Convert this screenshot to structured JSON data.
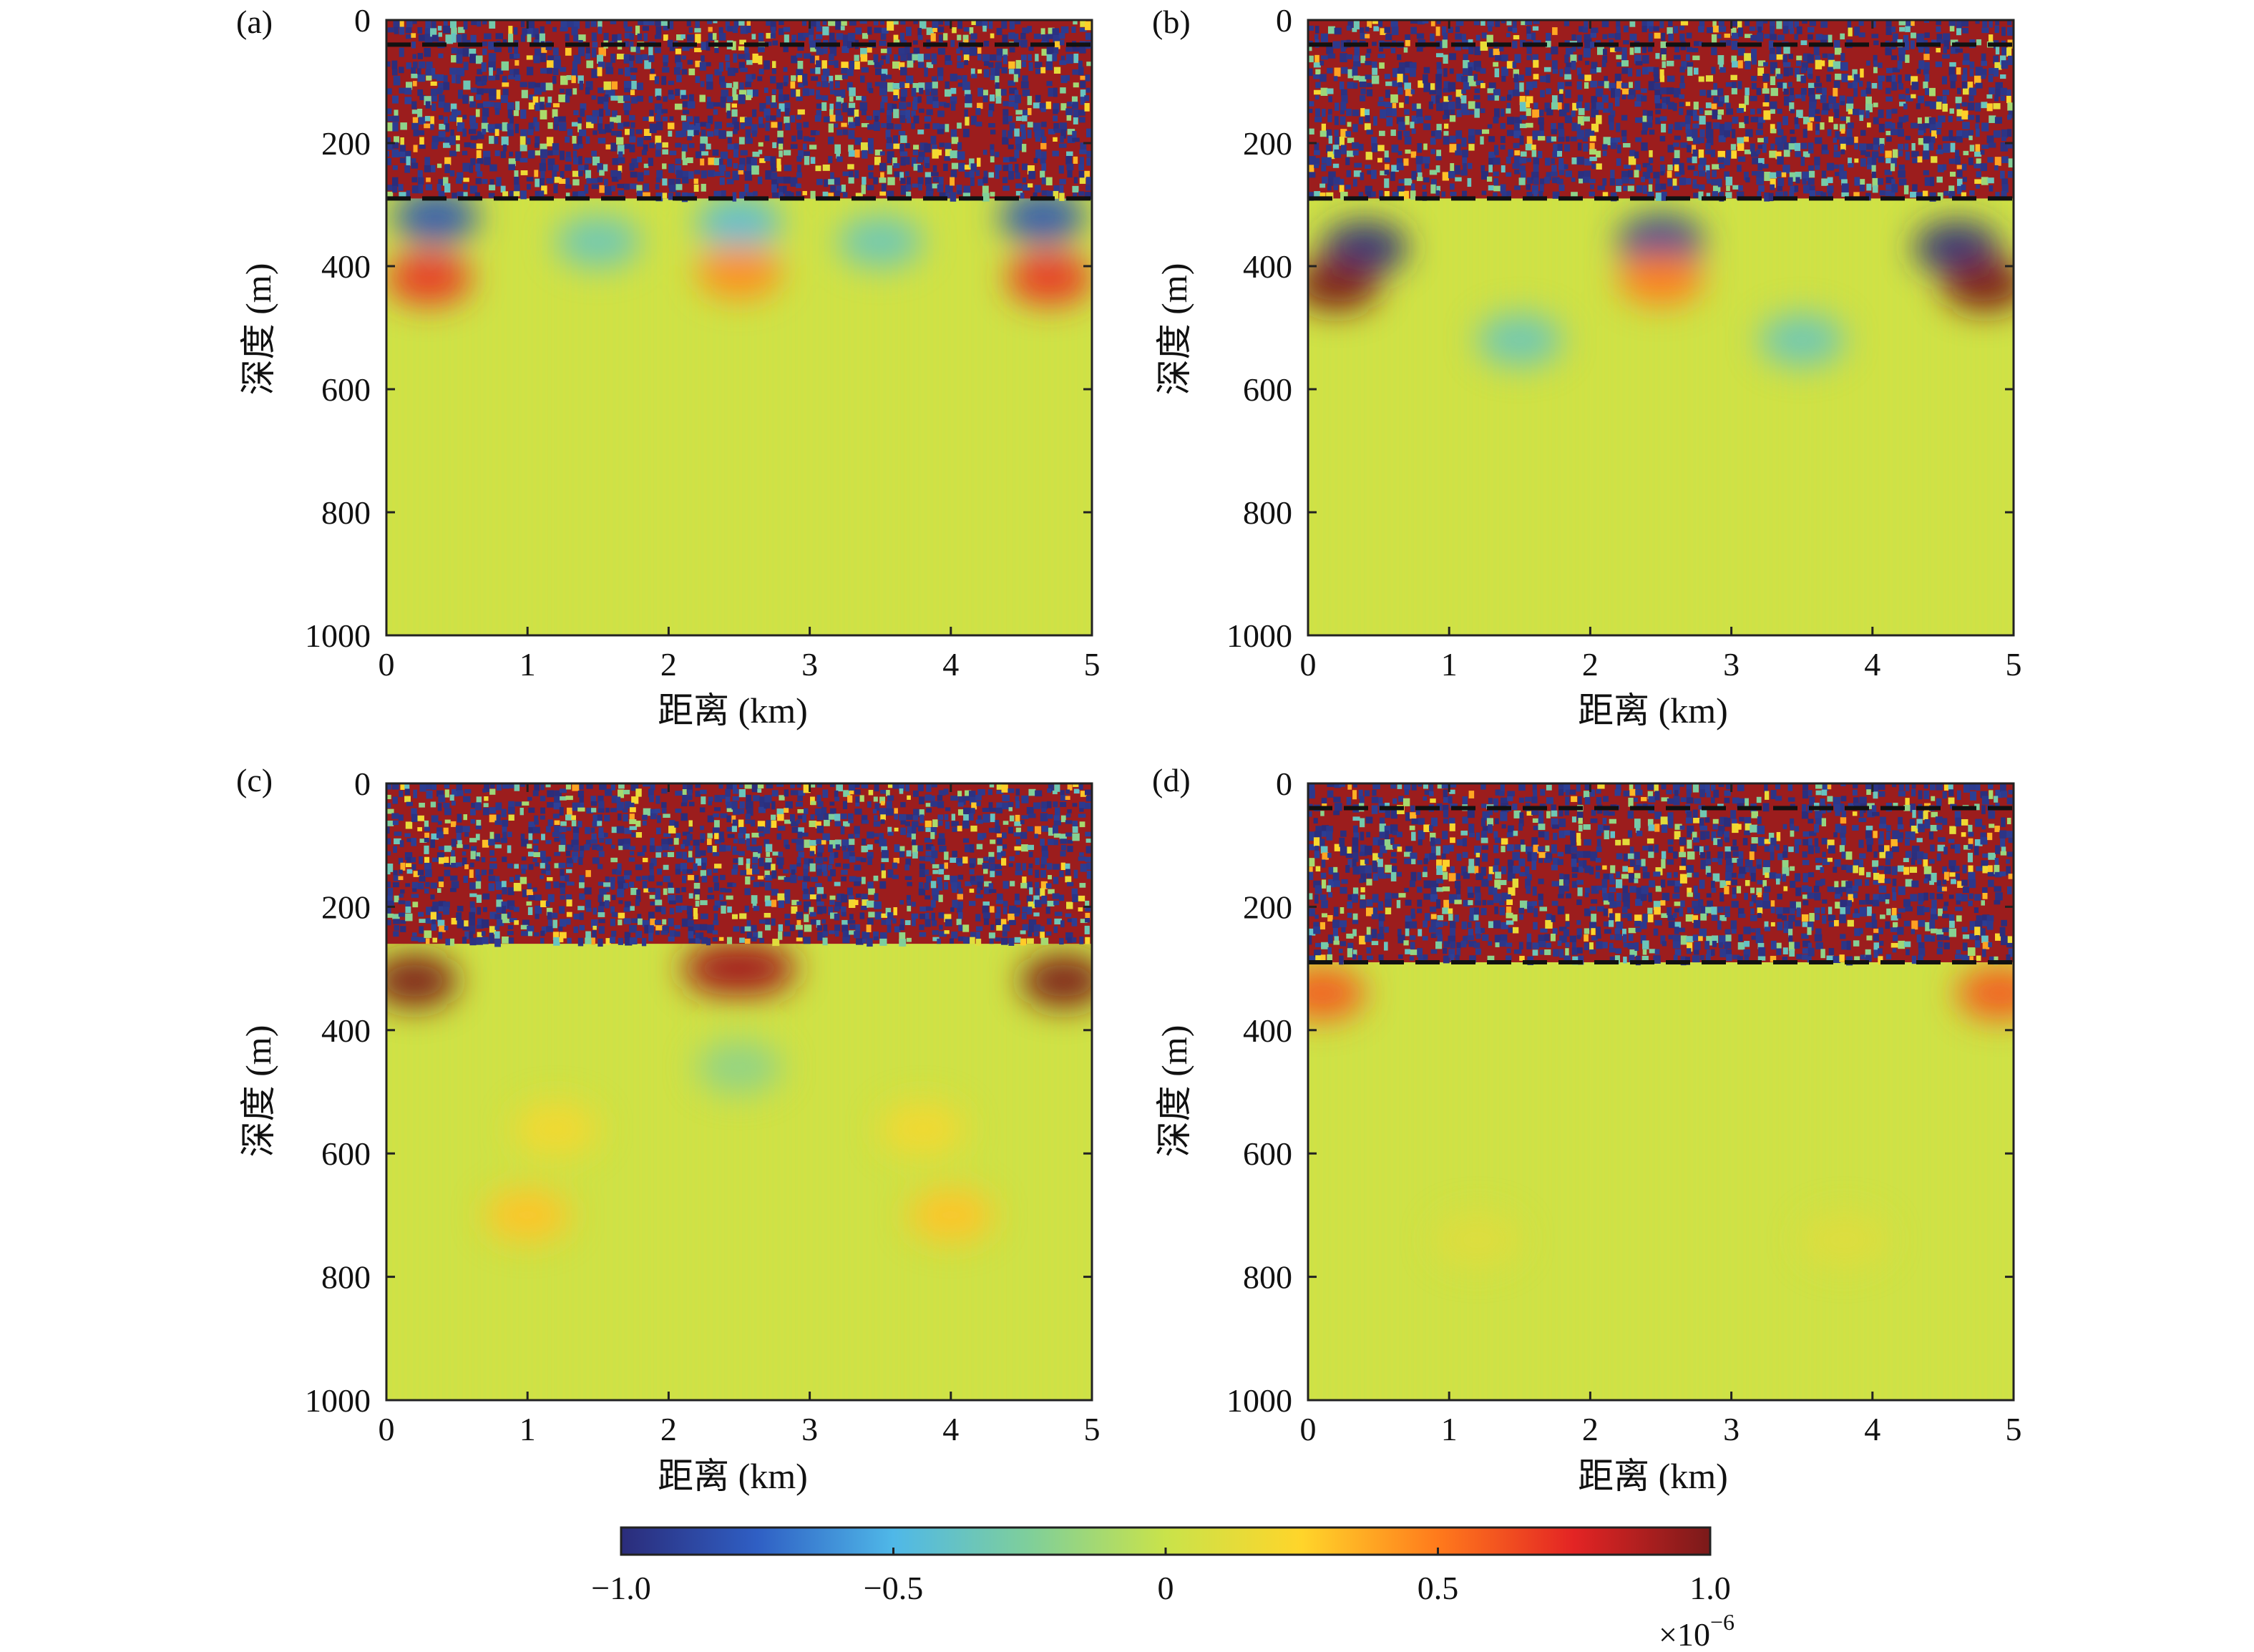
{
  "chart_data": [
    {
      "type": "heatmap",
      "panel_label": "(a)",
      "xlabel": "距离 (km)",
      "ylabel": "深度 (m)",
      "xlim": [
        0,
        5
      ],
      "ylim": [
        1000,
        0
      ],
      "x_ticks": [
        "0",
        "1",
        "2",
        "3",
        "4",
        "5"
      ],
      "y_ticks": [
        "0",
        "200",
        "400",
        "600",
        "800",
        "1000"
      ],
      "dashed_lines_depth_m": [
        40,
        290
      ],
      "noisy_layer_depth_m": [
        0,
        290
      ],
      "lobes": [
        {
          "x_km": 0.35,
          "depth_m": 320,
          "value": -0.8
        },
        {
          "x_km": 0.3,
          "depth_m": 420,
          "value": 0.7
        },
        {
          "x_km": 1.5,
          "depth_m": 360,
          "value": -0.35
        },
        {
          "x_km": 2.5,
          "depth_m": 330,
          "value": -0.45
        },
        {
          "x_km": 2.5,
          "depth_m": 410,
          "value": 0.45
        },
        {
          "x_km": 3.5,
          "depth_m": 360,
          "value": -0.35
        },
        {
          "x_km": 4.65,
          "depth_m": 320,
          "value": -0.8
        },
        {
          "x_km": 4.7,
          "depth_m": 420,
          "value": 0.7
        }
      ]
    },
    {
      "type": "heatmap",
      "panel_label": "(b)",
      "xlabel": "距离 (km)",
      "ylabel": "深度 (m)",
      "xlim": [
        0,
        5
      ],
      "ylim": [
        1000,
        0
      ],
      "x_ticks": [
        "0",
        "1",
        "2",
        "3",
        "4",
        "5"
      ],
      "y_ticks": [
        "0",
        "200",
        "400",
        "600",
        "800",
        "1000"
      ],
      "dashed_lines_depth_m": [
        40,
        290
      ],
      "noisy_layer_depth_m": [
        0,
        290
      ],
      "lobes": [
        {
          "x_km": 0.4,
          "depth_m": 370,
          "value": -1.0
        },
        {
          "x_km": 0.2,
          "depth_m": 430,
          "value": 1.0
        },
        {
          "x_km": 1.5,
          "depth_m": 520,
          "value": -0.35
        },
        {
          "x_km": 2.5,
          "depth_m": 360,
          "value": -0.9
        },
        {
          "x_km": 2.5,
          "depth_m": 420,
          "value": 0.5
        },
        {
          "x_km": 3.5,
          "depth_m": 520,
          "value": -0.35
        },
        {
          "x_km": 4.6,
          "depth_m": 370,
          "value": -1.0
        },
        {
          "x_km": 4.8,
          "depth_m": 430,
          "value": 1.0
        }
      ]
    },
    {
      "type": "heatmap",
      "panel_label": "(c)",
      "xlabel": "距离 (km)",
      "ylabel": "深度 (m)",
      "xlim": [
        0,
        5
      ],
      "ylim": [
        1000,
        0
      ],
      "x_ticks": [
        "0",
        "1",
        "2",
        "3",
        "4",
        "5"
      ],
      "y_ticks": [
        "0",
        "200",
        "400",
        "600",
        "800",
        "1000"
      ],
      "dashed_lines_depth_m": [],
      "noisy_layer_depth_m": [
        0,
        260
      ],
      "lobes": [
        {
          "x_km": 0.2,
          "depth_m": 320,
          "value": 1.0
        },
        {
          "x_km": 4.8,
          "depth_m": 320,
          "value": 1.0
        },
        {
          "x_km": 2.4,
          "depth_m": 300,
          "value": 0.9
        },
        {
          "x_km": 2.6,
          "depth_m": 300,
          "value": 0.9
        },
        {
          "x_km": 1.2,
          "depth_m": 560,
          "value": 0.2
        },
        {
          "x_km": 3.8,
          "depth_m": 560,
          "value": 0.2
        },
        {
          "x_km": 1.0,
          "depth_m": 700,
          "value": 0.3
        },
        {
          "x_km": 4.0,
          "depth_m": 700,
          "value": 0.3
        },
        {
          "x_km": 2.5,
          "depth_m": 460,
          "value": -0.2
        }
      ]
    },
    {
      "type": "heatmap",
      "panel_label": "(d)",
      "xlabel": "距离 (km)",
      "ylabel": "深度 (m)",
      "xlim": [
        0,
        5
      ],
      "ylim": [
        1000,
        0
      ],
      "x_ticks": [
        "0",
        "1",
        "2",
        "3",
        "4",
        "5"
      ],
      "y_ticks": [
        "0",
        "200",
        "400",
        "600",
        "800",
        "1000"
      ],
      "dashed_lines_depth_m": [
        40,
        290
      ],
      "noisy_layer_depth_m": [
        0,
        290
      ],
      "lobes": [
        {
          "x_km": 0.1,
          "depth_m": 340,
          "value": 0.6
        },
        {
          "x_km": 4.9,
          "depth_m": 340,
          "value": 0.6
        },
        {
          "x_km": 1.2,
          "depth_m": 740,
          "value": 0.1
        },
        {
          "x_km": 3.8,
          "depth_m": 740,
          "value": 0.1
        }
      ]
    }
  ],
  "colorbar": {
    "range": [
      -1.0,
      1.0
    ],
    "tick_labels": [
      "−1.0",
      "−0.5",
      "0",
      "0.5",
      "1.0"
    ],
    "tick_values": [
      -1.0,
      -0.5,
      0,
      0.5,
      1.0
    ],
    "multiplier_base": "×10",
    "multiplier_exponent": "−6",
    "colors": [
      "#2b2c7a",
      "#2f5fc4",
      "#4fb8e8",
      "#7fcf9a",
      "#c9e34a",
      "#ffd52a",
      "#ff7a1c",
      "#e32424",
      "#7a1a1a"
    ]
  }
}
